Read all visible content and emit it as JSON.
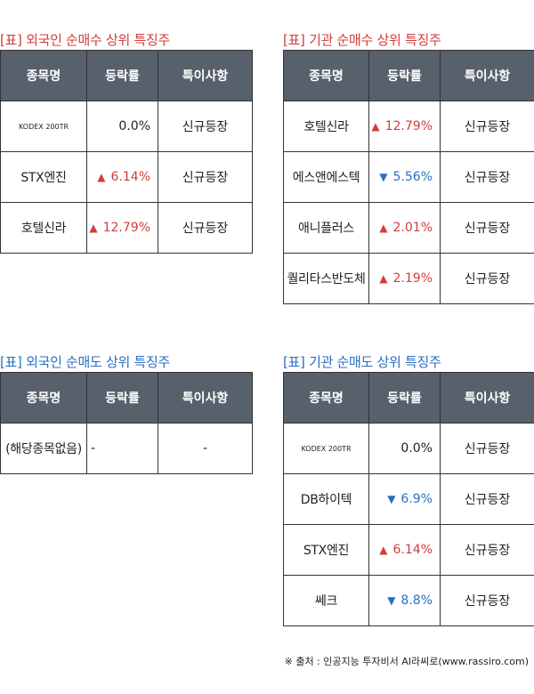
{
  "headers": [
    "종목명",
    "등락률",
    "특이사항"
  ],
  "sections": [
    {
      "id": "foreign-buy",
      "title": "[표] 외국인 순매수 상위 특징주",
      "rows": [
        {
          "name": "KODEX 200TR",
          "dir": "none",
          "rate": "0.0%",
          "note": "신규등장"
        },
        {
          "name": "STX엔진",
          "dir": "up",
          "rate": "6.14%",
          "note": "신규등장"
        },
        {
          "name": "호텔신라",
          "dir": "up",
          "rate": "12.79%",
          "note": "신규등장"
        }
      ]
    },
    {
      "id": "inst-buy",
      "title": "[표] 기관 순매수 상위 특징주",
      "rows": [
        {
          "name": "호텔신라",
          "dir": "up",
          "rate": "12.79%",
          "note": "신규등장"
        },
        {
          "name": "에스앤에스텍",
          "dir": "down",
          "rate": "5.56%",
          "note": "신규등장"
        },
        {
          "name": "애니플러스",
          "dir": "up",
          "rate": "2.01%",
          "note": "신규등장"
        },
        {
          "name": "퀄리타스반도체",
          "dir": "up",
          "rate": "2.19%",
          "note": "신규등장"
        }
      ]
    },
    {
      "id": "foreign-sell",
      "title": "[표] 외국인 순매도 상위 특징주",
      "rows": [
        {
          "name": "(해당종목없음)",
          "dir": "none",
          "rate": "-",
          "note": "-"
        }
      ]
    },
    {
      "id": "inst-sell",
      "title": "[표] 기관 순매도 상위 특징주",
      "rows": [
        {
          "name": "KODEX 200TR",
          "dir": "none",
          "rate": "0.0%",
          "note": "신규등장"
        },
        {
          "name": "DB하이텍",
          "dir": "down",
          "rate": "6.9%",
          "note": "신규등장"
        },
        {
          "name": "STX엔진",
          "dir": "up",
          "rate": "6.14%",
          "note": "신규등장"
        },
        {
          "name": "쎄크",
          "dir": "down",
          "rate": "8.8%",
          "note": "신규등장"
        }
      ]
    }
  ],
  "icons": {
    "up": "▲",
    "down": "▼"
  },
  "colors": {
    "up": "#d23c3c",
    "down": "#2a6fc0",
    "header_bg": "#57606b"
  },
  "source_note": "※ 출처 : 인공지능 투자비서 AI라씨로(www.rassiro.com)"
}
